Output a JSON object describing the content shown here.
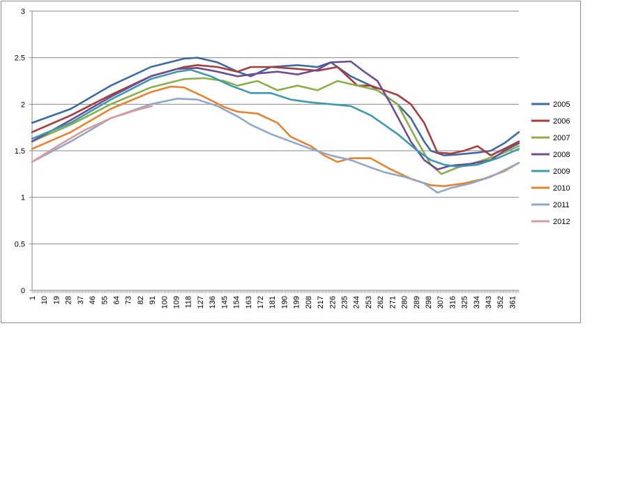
{
  "chart_data": {
    "type": "line",
    "title": "",
    "xlabel": "",
    "ylabel": "",
    "ylim": [
      0,
      3
    ],
    "y_ticks": [
      "0",
      "0.5",
      "1",
      "1.5",
      "2",
      "2.5",
      "3"
    ],
    "xlim": [
      1,
      366
    ],
    "x_tick_labels": [
      "1",
      "10",
      "19",
      "28",
      "37",
      "46",
      "55",
      "64",
      "73",
      "82",
      "91",
      "100",
      "109",
      "118",
      "127",
      "136",
      "145",
      "154",
      "163",
      "172",
      "181",
      "190",
      "199",
      "208",
      "217",
      "226",
      "235",
      "244",
      "253",
      "262",
      "271",
      "280",
      "289",
      "298",
      "307",
      "316",
      "325",
      "334",
      "343",
      "352",
      "361"
    ],
    "grid": "horizontal",
    "legend_position": "right",
    "series": [
      {
        "name": "2005",
        "color": "#3D6AA5",
        "x": [
          1,
          30,
          60,
          90,
          115,
          125,
          140,
          155,
          165,
          180,
          200,
          215,
          225,
          240,
          255,
          265,
          275,
          285,
          295,
          300,
          310,
          320,
          335,
          345,
          355,
          366
        ],
        "y": [
          1.8,
          1.95,
          2.2,
          2.4,
          2.49,
          2.5,
          2.45,
          2.35,
          2.3,
          2.4,
          2.42,
          2.4,
          2.45,
          2.3,
          2.2,
          2.1,
          2.0,
          1.85,
          1.6,
          1.5,
          1.45,
          1.46,
          1.48,
          1.5,
          1.58,
          1.7
        ]
      },
      {
        "name": "2006",
        "color": "#A83B3B",
        "x": [
          1,
          30,
          60,
          90,
          115,
          125,
          140,
          155,
          165,
          180,
          200,
          215,
          230,
          245,
          255,
          265,
          275,
          285,
          295,
          305,
          315,
          325,
          335,
          345,
          355,
          366
        ],
        "y": [
          1.7,
          1.88,
          2.1,
          2.3,
          2.4,
          2.42,
          2.4,
          2.35,
          2.4,
          2.4,
          2.38,
          2.36,
          2.4,
          2.2,
          2.2,
          2.15,
          2.1,
          2.0,
          1.8,
          1.48,
          1.47,
          1.5,
          1.55,
          1.45,
          1.52,
          1.6
        ]
      },
      {
        "name": "2007",
        "color": "#8AAF47",
        "x": [
          1,
          30,
          60,
          90,
          115,
          130,
          145,
          155,
          170,
          185,
          200,
          215,
          230,
          245,
          260,
          275,
          290,
          300,
          308,
          320,
          335,
          350,
          366
        ],
        "y": [
          1.6,
          1.78,
          2.0,
          2.18,
          2.27,
          2.28,
          2.25,
          2.2,
          2.25,
          2.15,
          2.2,
          2.15,
          2.25,
          2.2,
          2.15,
          2.0,
          1.6,
          1.35,
          1.25,
          1.32,
          1.38,
          1.45,
          1.55
        ]
      },
      {
        "name": "2008",
        "color": "#6E4C94",
        "x": [
          1,
          30,
          60,
          90,
          110,
          125,
          140,
          155,
          170,
          185,
          200,
          215,
          225,
          240,
          250,
          260,
          270,
          285,
          295,
          305,
          315,
          330,
          345,
          355,
          366
        ],
        "y": [
          1.6,
          1.83,
          2.08,
          2.3,
          2.38,
          2.39,
          2.35,
          2.3,
          2.33,
          2.35,
          2.32,
          2.37,
          2.45,
          2.46,
          2.35,
          2.25,
          2.0,
          1.6,
          1.4,
          1.3,
          1.34,
          1.36,
          1.4,
          1.5,
          1.58
        ]
      },
      {
        "name": "2009",
        "color": "#3B9AAF",
        "x": [
          1,
          30,
          60,
          90,
          110,
          120,
          135,
          150,
          165,
          180,
          195,
          210,
          225,
          240,
          255,
          265,
          275,
          290,
          300,
          310,
          320,
          335,
          350,
          366
        ],
        "y": [
          1.63,
          1.8,
          2.05,
          2.27,
          2.35,
          2.37,
          2.3,
          2.2,
          2.12,
          2.12,
          2.05,
          2.02,
          2.0,
          1.98,
          1.88,
          1.78,
          1.68,
          1.5,
          1.4,
          1.35,
          1.33,
          1.35,
          1.42,
          1.52
        ]
      },
      {
        "name": "2010",
        "color": "#E8822D",
        "x": [
          1,
          30,
          60,
          90,
          105,
          115,
          130,
          145,
          155,
          170,
          185,
          195,
          210,
          220,
          230,
          240,
          255,
          270,
          285,
          300,
          310,
          325,
          340,
          355,
          366
        ],
        "y": [
          1.52,
          1.7,
          1.95,
          2.13,
          2.19,
          2.18,
          2.08,
          1.97,
          1.92,
          1.9,
          1.8,
          1.65,
          1.55,
          1.45,
          1.38,
          1.42,
          1.42,
          1.3,
          1.2,
          1.13,
          1.12,
          1.15,
          1.2,
          1.28,
          1.37
        ]
      },
      {
        "name": "2011",
        "color": "#8FA8CC",
        "x": [
          1,
          30,
          60,
          90,
          110,
          125,
          140,
          155,
          165,
          180,
          195,
          210,
          225,
          240,
          255,
          265,
          280,
          295,
          305,
          315,
          330,
          345,
          366
        ],
        "y": [
          1.38,
          1.6,
          1.85,
          2.0,
          2.06,
          2.05,
          1.98,
          1.87,
          1.78,
          1.68,
          1.6,
          1.52,
          1.45,
          1.4,
          1.32,
          1.27,
          1.22,
          1.15,
          1.05,
          1.1,
          1.15,
          1.22,
          1.37
        ]
      },
      {
        "name": "2012",
        "color": "#D99A98",
        "x": [
          1,
          20,
          40,
          60,
          80,
          91
        ],
        "y": [
          1.38,
          1.55,
          1.72,
          1.85,
          1.94,
          1.98
        ]
      }
    ]
  }
}
